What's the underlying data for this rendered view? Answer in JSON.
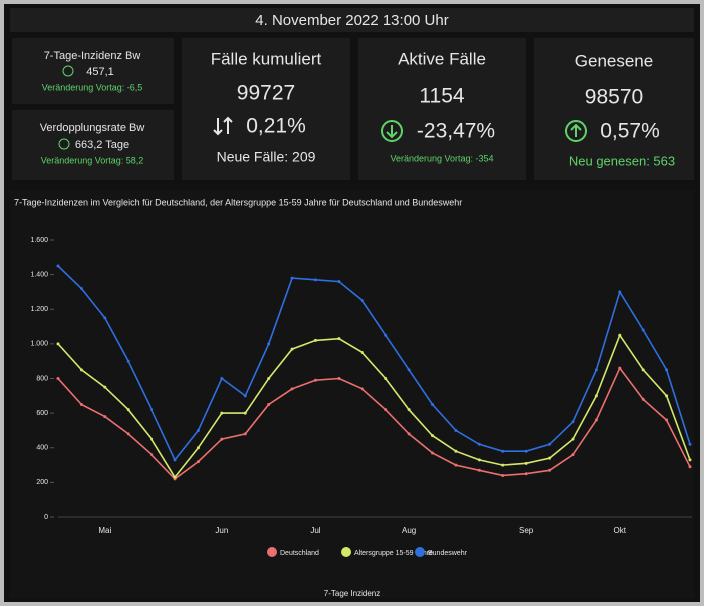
{
  "header": {
    "title": "4. November 2022 13:00 Uhr"
  },
  "tiles": {
    "incidence": {
      "label": "7-Tage-Inzidenz Bw",
      "value": "457,1",
      "change": "Veränderung Vortag: -6,5"
    },
    "doubling": {
      "label": "Verdopplungsrate Bw",
      "value": "663,2 Tage",
      "change": "Veränderung Vortag: 58,2"
    },
    "cumulative": {
      "label": "Fälle kumuliert",
      "value": "99727",
      "percent": "0,21%",
      "sub": "Neue Fälle: 209"
    },
    "active": {
      "label": "Aktive Fälle",
      "value": "1154",
      "percent": "-23,47%",
      "sub": "Veränderung Vortag: -354"
    },
    "recovered": {
      "label": "Genesene",
      "value": "98570",
      "percent": "0,57%",
      "sub": "Neu genesen: 563"
    }
  },
  "chart_data": {
    "type": "line",
    "title": "7-Tage-Inzidenzen im Vergleich für Deutschland, der Altersgruppe 15-59 Jahre für Deutschland und Bundeswehr",
    "x_label": "7-Tage Inzidenz",
    "categories": [
      null,
      null,
      "Mai",
      null,
      null,
      null,
      null,
      "Jun",
      null,
      null,
      null,
      "Jul",
      null,
      null,
      null,
      "Aug",
      null,
      null,
      null,
      null,
      "Sep",
      null,
      null,
      null,
      "Okt",
      null,
      null,
      null
    ],
    "series": [
      {
        "name": "Deutschland",
        "color": "#ec6f6f",
        "values": [
          800,
          650,
          580,
          480,
          360,
          220,
          320,
          450,
          480,
          650,
          740,
          790,
          800,
          740,
          620,
          480,
          370,
          300,
          270,
          240,
          250,
          270,
          360,
          560,
          860,
          680,
          560,
          290
        ]
      },
      {
        "name": "Altersgruppe 15-59 Jahre",
        "color": "#d6e86a",
        "values": [
          1000,
          850,
          750,
          620,
          450,
          230,
          400,
          600,
          600,
          800,
          970,
          1020,
          1030,
          950,
          800,
          620,
          470,
          380,
          330,
          300,
          310,
          340,
          450,
          700,
          1050,
          850,
          700,
          330
        ]
      },
      {
        "name": "Bundeswehr",
        "color": "#2f6fe0",
        "values": [
          1450,
          1320,
          1150,
          900,
          620,
          330,
          500,
          800,
          700,
          1000,
          1380,
          1370,
          1360,
          1250,
          1050,
          850,
          650,
          500,
          420,
          380,
          380,
          420,
          550,
          850,
          1300,
          1080,
          850,
          420
        ]
      }
    ],
    "ylim": [
      0,
      1600
    ],
    "yticks": [
      0,
      200,
      400,
      600,
      800,
      {
        "value": 1000,
        "label": "1.000"
      },
      {
        "value": 1200,
        "label": "1.200"
      },
      {
        "value": 1400,
        "label": "1.400"
      },
      {
        "value": 1600,
        "label": "1.600"
      }
    ],
    "grid": false,
    "legend": "bottom"
  }
}
